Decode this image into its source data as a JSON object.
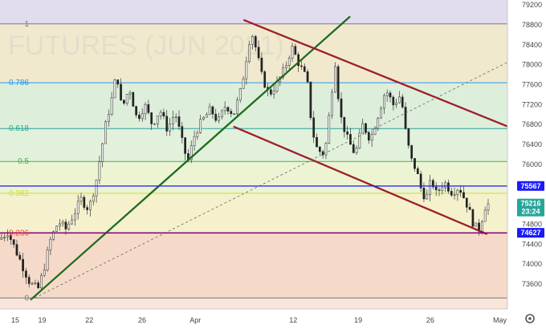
{
  "watermark": "FUTURES (JUN 2021)",
  "chart_data": {
    "type": "candlestick",
    "title": "",
    "ylim": [
      73100,
      79300
    ],
    "y_ticks": [
      73600,
      74000,
      74400,
      74800,
      75200,
      75600,
      76000,
      76400,
      76800,
      77200,
      77600,
      78000,
      78400,
      78800,
      79200
    ],
    "x_tick_labels": [
      "15",
      "19",
      "22",
      "26",
      "Apr",
      "12",
      "19",
      "26",
      "May"
    ],
    "fib_levels": [
      {
        "label": "1",
        "value": 78820,
        "color": "#787b86"
      },
      {
        "label": "0.786",
        "value": 77640,
        "color": "#2196f3"
      },
      {
        "label": "0.618",
        "value": 76720,
        "color": "#26a69a"
      },
      {
        "label": "0.5",
        "value": 76060,
        "color": "#4caf50"
      },
      {
        "label": "0.382",
        "value": 75420,
        "color": "#cddc39"
      },
      {
        "label": "0.236",
        "value": 74620,
        "color": "#f44336"
      },
      {
        "label": "0",
        "value": 73320,
        "color": "#787b86"
      }
    ],
    "price_tags": [
      {
        "label": "75567",
        "value": 75567,
        "color": "#1a1aff"
      },
      {
        "label": "75216",
        "sublabel": "23:24",
        "value": 75216,
        "color": "#26a69a"
      },
      {
        "label": "74627",
        "value": 74627,
        "color": "#1a1aff"
      }
    ],
    "horizontal_lines": [
      {
        "value": 75567,
        "color": "#2a2aff"
      },
      {
        "value": 74627,
        "color": "#800080"
      }
    ],
    "trendlines": [
      {
        "name": "support",
        "x1": 0.06,
        "y1": 73280,
        "x2": 0.69,
        "y2": 78970,
        "color": "#1e6b1e"
      },
      {
        "name": "upper-channel",
        "x1": 0.48,
        "y1": 78900,
        "x2": 1.04,
        "y2": 76600,
        "color": "#9e1f2a"
      },
      {
        "name": "lower-channel",
        "x1": 0.46,
        "y1": 76760,
        "x2": 0.96,
        "y2": 74600,
        "color": "#9e1f2a"
      },
      {
        "name": "dashed",
        "x1": 0.06,
        "y1": 73280,
        "x2": 1.0,
        "y2": 78050,
        "color": "#666666",
        "dashed": true
      }
    ],
    "price_path": [
      [
        0.0,
        74500
      ],
      [
        0.015,
        74650
      ],
      [
        0.03,
        74300
      ],
      [
        0.045,
        73950
      ],
      [
        0.06,
        73600
      ],
      [
        0.075,
        73500
      ],
      [
        0.085,
        73850
      ],
      [
        0.1,
        74500
      ],
      [
        0.115,
        74850
      ],
      [
        0.13,
        74700
      ],
      [
        0.145,
        75000
      ],
      [
        0.16,
        75300
      ],
      [
        0.175,
        75100
      ],
      [
        0.19,
        75700
      ],
      [
        0.2,
        76300
      ],
      [
        0.21,
        76900
      ],
      [
        0.22,
        77300
      ],
      [
        0.23,
        77850
      ],
      [
        0.24,
        77100
      ],
      [
        0.255,
        77550
      ],
      [
        0.27,
        76900
      ],
      [
        0.285,
        77200
      ],
      [
        0.3,
        76800
      ],
      [
        0.315,
        77100
      ],
      [
        0.33,
        76700
      ],
      [
        0.345,
        77050
      ],
      [
        0.36,
        76400
      ],
      [
        0.37,
        76050
      ],
      [
        0.385,
        76650
      ],
      [
        0.4,
        76900
      ],
      [
        0.415,
        77100
      ],
      [
        0.43,
        76850
      ],
      [
        0.445,
        77200
      ],
      [
        0.46,
        77000
      ],
      [
        0.475,
        77500
      ],
      [
        0.485,
        78100
      ],
      [
        0.495,
        78700
      ],
      [
        0.505,
        78300
      ],
      [
        0.515,
        77800
      ],
      [
        0.53,
        77400
      ],
      [
        0.545,
        77600
      ],
      [
        0.56,
        77900
      ],
      [
        0.575,
        78350
      ],
      [
        0.59,
        78000
      ],
      [
        0.605,
        77700
      ],
      [
        0.615,
        76700
      ],
      [
        0.625,
        76300
      ],
      [
        0.64,
        76200
      ],
      [
        0.65,
        77100
      ],
      [
        0.66,
        78100
      ],
      [
        0.67,
        77000
      ],
      [
        0.685,
        76500
      ],
      [
        0.7,
        76200
      ],
      [
        0.715,
        76800
      ],
      [
        0.73,
        76500
      ],
      [
        0.745,
        77000
      ],
      [
        0.76,
        77500
      ],
      [
        0.775,
        77200
      ],
      [
        0.79,
        77400
      ],
      [
        0.8,
        76600
      ],
      [
        0.81,
        76100
      ],
      [
        0.82,
        75900
      ],
      [
        0.83,
        75500
      ],
      [
        0.84,
        75300
      ],
      [
        0.85,
        75700
      ],
      [
        0.86,
        75400
      ],
      [
        0.875,
        75650
      ],
      [
        0.89,
        75450
      ],
      [
        0.905,
        75550
      ],
      [
        0.92,
        75200
      ],
      [
        0.935,
        74750
      ],
      [
        0.945,
        74700
      ],
      [
        0.955,
        75150
      ],
      [
        0.965,
        75220
      ]
    ]
  }
}
